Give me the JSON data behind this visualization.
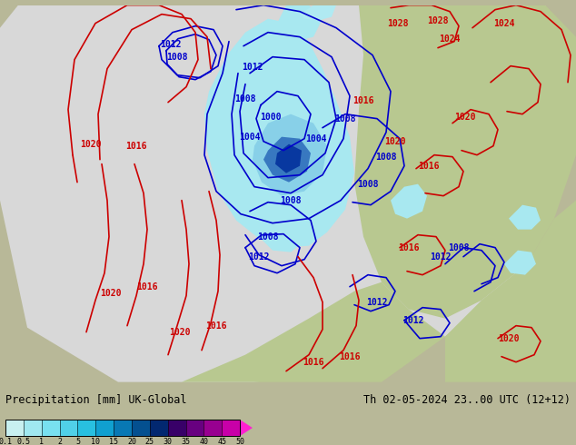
{
  "title_left": "Precipitation [mm] UK-Global",
  "title_right": "Th 02-05-2024 23..00 UTC (12+12)",
  "colorbar_labels": [
    "0.1",
    "0.5",
    "1",
    "2",
    "5",
    "10",
    "15",
    "20",
    "25",
    "30",
    "35",
    "40",
    "45",
    "50"
  ],
  "colorbar_colors": [
    "#c8f0f0",
    "#a0e8f0",
    "#78e0f0",
    "#50d0e8",
    "#28c0e0",
    "#10a0d0",
    "#0878b4",
    "#045090",
    "#022870",
    "#380068",
    "#680080",
    "#980090",
    "#c800a8",
    "#e800c0",
    "#ff20d0"
  ],
  "bg_color": "#b8b898",
  "land_color": "#c8c8a0",
  "gray_domain_color": "#d8d8d8",
  "green_land_color": "#b8c890",
  "precip_light_color": "#a8e8f0",
  "precip_mid_color": "#70c0e0",
  "precip_dark_color": "#3878b0",
  "precip_darkest_color": "#0830608",
  "isobar_blue_color": "#0000cc",
  "isobar_red_color": "#cc0000",
  "label_fontsize": 8,
  "title_fontsize": 8.5,
  "fig_width": 6.34,
  "fig_height": 4.9,
  "dpi": 100
}
